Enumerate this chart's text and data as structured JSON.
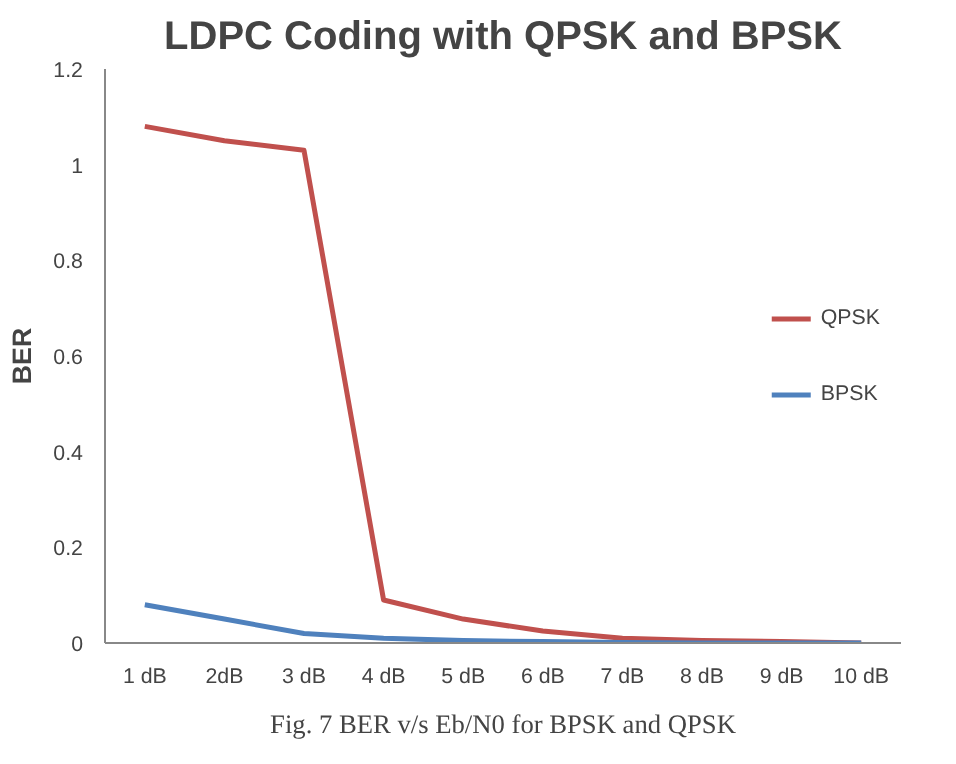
{
  "chart_data": {
    "type": "line",
    "title": "LDPC Coding with QPSK and BPSK",
    "ylabel": "BER",
    "categories": [
      "1 dB",
      "2dB",
      "3 dB",
      "4 dB",
      "5 dB",
      "6 dB",
      "7 dB",
      "8 dB",
      "9 dB",
      "10 dB"
    ],
    "series": [
      {
        "name": "QPSK",
        "color": "#c0504d",
        "values": [
          1.08,
          1.05,
          1.03,
          0.09,
          0.05,
          0.025,
          0.01,
          0.005,
          0.003,
          0
        ]
      },
      {
        "name": "BPSK",
        "color": "#4f81bd",
        "values": [
          0.08,
          0.05,
          0.02,
          0.01,
          0.005,
          0.003,
          0.001,
          0,
          0,
          0
        ]
      }
    ],
    "ylim": [
      0,
      1.2
    ],
    "yticks": [
      0,
      0.2,
      0.4,
      0.6,
      0.8,
      1,
      1.2
    ],
    "legend": "right",
    "line_style": "solid",
    "annotations": [
      "Fig. 7 BER v/s Eb/N0 for BPSK and QPSK"
    ]
  }
}
